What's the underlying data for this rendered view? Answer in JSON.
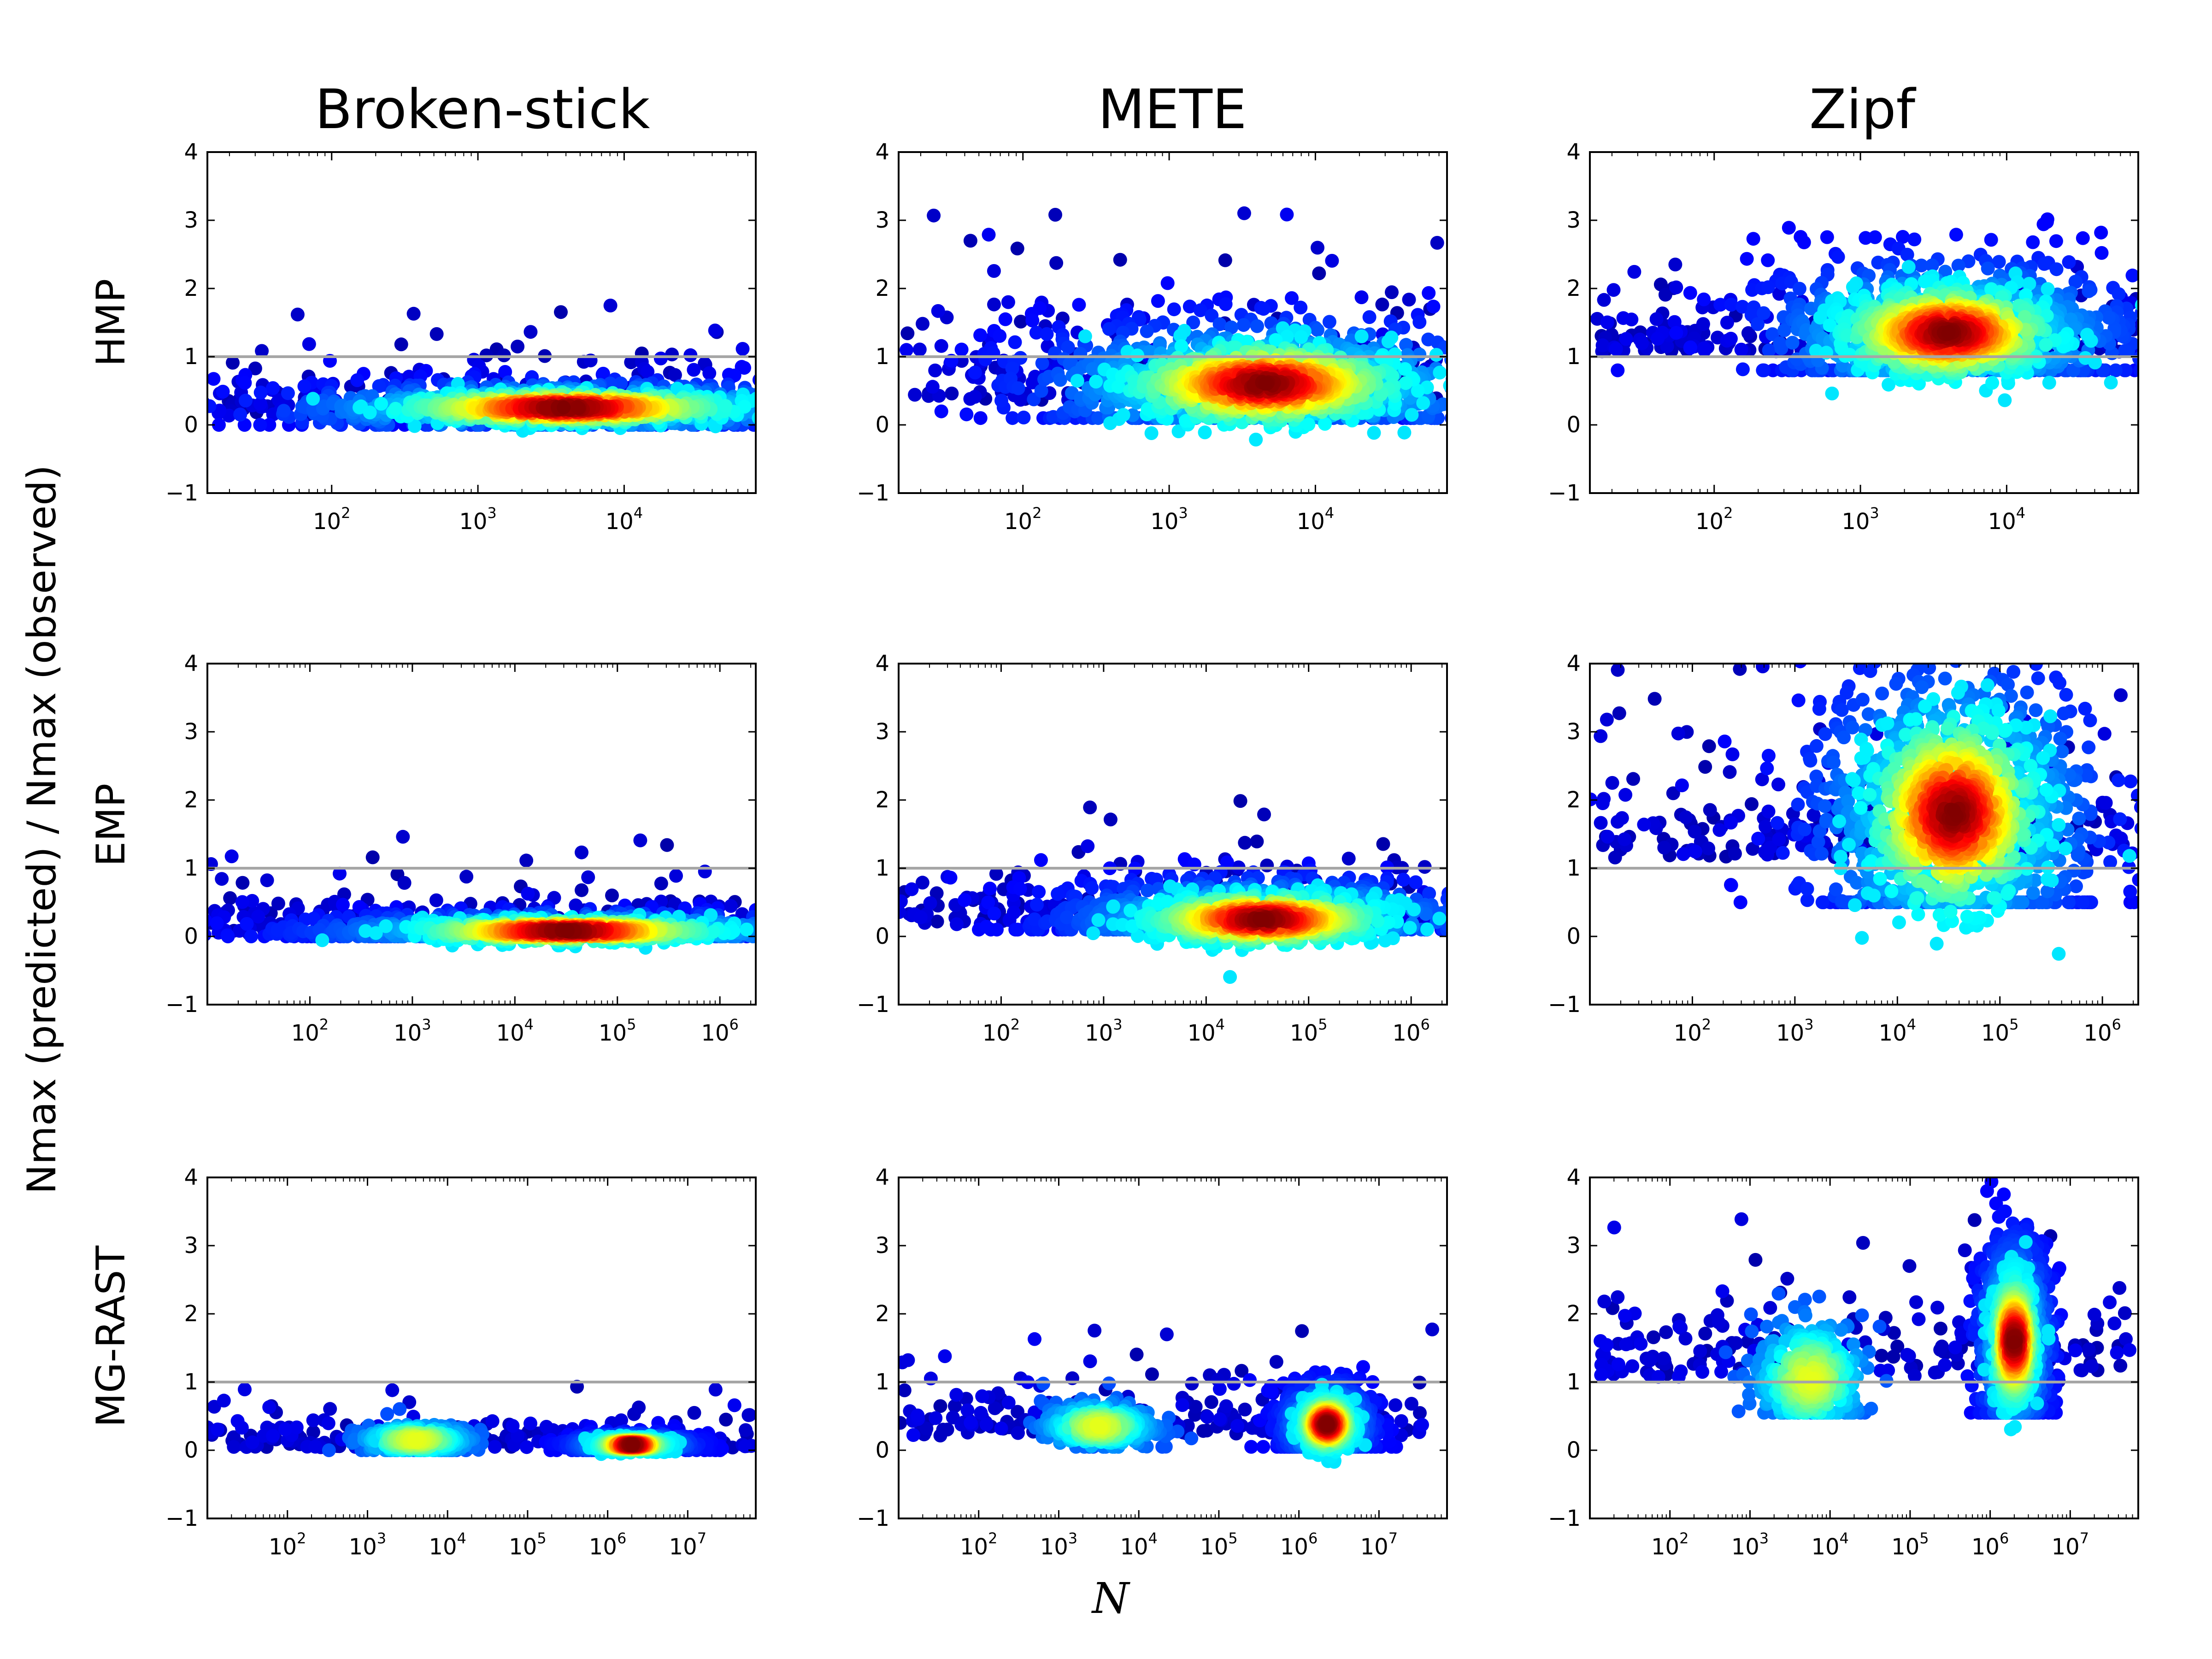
{
  "figure": {
    "column_titles": [
      "Broken-stick",
      "METE",
      "Zipf"
    ],
    "row_labels": [
      "HMP",
      "EMP",
      "MG-RAST"
    ],
    "ylabel": "Nmax (predicted) / Nmax (observed)",
    "xlabel": "N"
  },
  "chart_data": {
    "type": "scatter",
    "grid": false,
    "reference_line": {
      "y": 1,
      "color": "#a6a6a6"
    },
    "colormap": [
      "#00008f",
      "#0000ff",
      "#0080ff",
      "#00ffff",
      "#80ff80",
      "#ffff00",
      "#ff8000",
      "#ff0000",
      "#800000"
    ],
    "ylim": [
      -1,
      4
    ],
    "yticks": [
      -1,
      0,
      1,
      2,
      3,
      4
    ],
    "rows": [
      {
        "dataset": "HMP",
        "xlim_log10": [
          1.15,
          4.9
        ],
        "xticks_log10": [
          2,
          3,
          4
        ],
        "panels": [
          {
            "model": "Broken-stick",
            "density_peak": {
              "log10N": 3.6,
              "ratio": 0.25
            },
            "spread": {
              "log10N": 0.55,
              "ratio": 0.14
            },
            "sparse_range": {
              "log10N": [
                1.2,
                4.9
              ],
              "ratio": [
                0.0,
                1.75
              ]
            }
          },
          {
            "model": "METE",
            "density_peak": {
              "log10N": 3.65,
              "ratio": 0.6
            },
            "spread": {
              "log10N": 0.45,
              "ratio": 0.35
            },
            "sparse_range": {
              "log10N": [
                1.2,
                4.9
              ],
              "ratio": [
                0.1,
                3.15
              ]
            }
          },
          {
            "model": "Zipf",
            "density_peak": {
              "log10N": 3.6,
              "ratio": 1.35
            },
            "spread": {
              "log10N": 0.35,
              "ratio": 0.4
            },
            "sparse_range": {
              "log10N": [
                1.2,
                4.9
              ],
              "ratio": [
                0.8,
                2.5
              ]
            }
          }
        ]
      },
      {
        "dataset": "EMP",
        "xlim_log10": [
          1.0,
          6.35
        ],
        "xticks_log10": [
          2,
          3,
          4,
          5,
          6
        ],
        "panels": [
          {
            "model": "Broken-stick",
            "density_peak": {
              "log10N": 4.5,
              "ratio": 0.08
            },
            "spread": {
              "log10N": 0.7,
              "ratio": 0.1
            },
            "sparse_range": {
              "log10N": [
                1.0,
                6.3
              ],
              "ratio": [
                0.0,
                1.5
              ]
            }
          },
          {
            "model": "METE",
            "density_peak": {
              "log10N": 4.55,
              "ratio": 0.25
            },
            "spread": {
              "log10N": 0.55,
              "ratio": 0.22
            },
            "sparse_range": {
              "log10N": [
                1.0,
                6.3
              ],
              "ratio": [
                0.1,
                2.0
              ]
            }
          },
          {
            "model": "Zipf",
            "density_peak": {
              "log10N": 4.55,
              "ratio": 1.8
            },
            "spread": {
              "log10N": 0.4,
              "ratio": 0.85
            },
            "sparse_range": {
              "log10N": [
                1.0,
                6.3
              ],
              "ratio": [
                0.5,
                4.0
              ]
            }
          }
        ]
      },
      {
        "dataset": "MG-RAST",
        "xlim_log10": [
          1.0,
          7.85
        ],
        "xticks_log10": [
          2,
          3,
          4,
          5,
          6,
          7
        ],
        "panels": [
          {
            "model": "Broken-stick",
            "density_peak": {
              "log10N": 6.3,
              "ratio": 0.08
            },
            "spread": {
              "log10N": 0.2,
              "ratio": 0.06
            },
            "secondary_cluster": {
              "log10N": 3.6,
              "ratio": 0.15
            },
            "sparse_range": {
              "log10N": [
                1.0,
                7.8
              ],
              "ratio": [
                0.0,
                1.05
              ]
            }
          },
          {
            "model": "METE",
            "density_peak": {
              "log10N": 6.35,
              "ratio": 0.38
            },
            "spread": {
              "log10N": 0.15,
              "ratio": 0.22
            },
            "secondary_cluster": {
              "log10N": 3.5,
              "ratio": 0.35
            },
            "sparse_range": {
              "log10N": [
                1.0,
                7.8
              ],
              "ratio": [
                0.05,
                1.8
              ]
            }
          },
          {
            "model": "Zipf",
            "density_peak": {
              "log10N": 6.3,
              "ratio": 1.6
            },
            "spread": {
              "log10N": 0.12,
              "ratio": 0.55
            },
            "secondary_cluster": {
              "log10N": 3.75,
              "ratio": 1.05
            },
            "sparse_range": {
              "log10N": [
                1.0,
                7.8
              ],
              "ratio": [
                0.55,
                3.45
              ]
            }
          }
        ]
      }
    ]
  }
}
